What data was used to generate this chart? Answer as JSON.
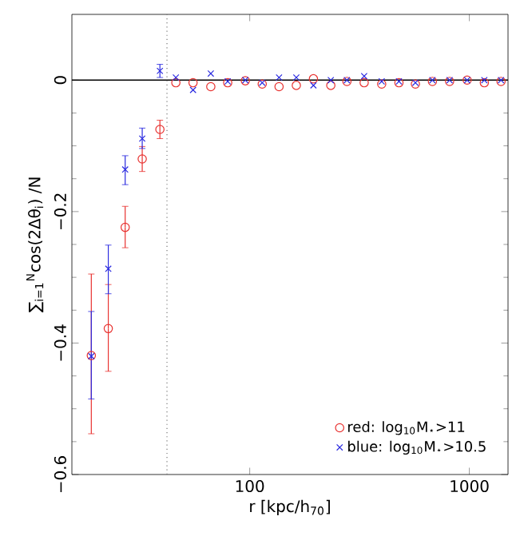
{
  "chart_data": {
    "type": "scatter",
    "xlabel": "r [kpc/h$_{70}$]",
    "ylabel": "∑$_{i=1}$$^{N}$cos(2Δθ$_{i}$) /N",
    "log": "x",
    "xlim": [
      15.5,
      1500
    ],
    "ylim": [
      -0.6,
      0.1
    ],
    "xticks": [
      100,
      1000
    ],
    "yticks": [
      {
        "value": -0.6,
        "label": "−0.6"
      },
      {
        "value": -0.4,
        "label": "−0.4"
      },
      {
        "value": -0.2,
        "label": "−0.2"
      },
      0
    ],
    "legend": "bottom right",
    "grid": false,
    "ref_lines": [
      {
        "axis": "y",
        "value": 0,
        "color": "#000000",
        "line_style": "solid"
      },
      {
        "axis": "x",
        "value": 42,
        "color": "#777777",
        "line_style": "dotted"
      }
    ],
    "series": [
      {
        "name": "red: log$_{10}$M$_{⋆}$>11",
        "color": "#e8312f",
        "marker": "circle",
        "x": [
          19.0,
          22.7,
          27.1,
          32.4,
          39.0,
          46.1,
          55.2,
          66.5,
          79.4,
          95.5,
          114,
          136,
          163,
          195,
          234,
          277,
          332,
          399,
          478,
          568,
          679,
          813,
          977,
          1170,
          1394
        ],
        "values": [
          -0.419,
          -0.378,
          -0.224,
          -0.12,
          -0.075,
          -0.004,
          -0.004,
          -0.01,
          -0.004,
          -0.001,
          -0.006,
          -0.01,
          -0.008,
          0.002,
          -0.008,
          -0.002,
          -0.004,
          -0.006,
          -0.004,
          -0.006,
          -0.002,
          -0.002,
          0,
          -0.004,
          -0.002
        ],
        "errors": [
          [
            -0.538,
            -0.295
          ],
          [
            -0.443,
            -0.311
          ],
          [
            -0.255,
            -0.192
          ],
          [
            -0.139,
            -0.101
          ],
          [
            -0.089,
            -0.061
          ],
          null,
          null,
          null,
          null,
          null,
          null,
          null,
          null,
          null,
          null,
          null,
          null,
          null,
          null,
          null,
          null,
          null,
          null,
          null,
          null
        ]
      },
      {
        "name": "blue: log$_{10}$M$_{⋆}$>10.5",
        "color": "#2a2ae0",
        "marker": "cross",
        "x": [
          19.0,
          22.7,
          27.1,
          32.4,
          39.0,
          46.1,
          55.2,
          66.5,
          79.4,
          95.5,
          114,
          136,
          163,
          195,
          234,
          277,
          332,
          399,
          478,
          568,
          679,
          813,
          977,
          1170,
          1394
        ],
        "values": [
          -0.42,
          -0.287,
          -0.136,
          -0.089,
          0.014,
          0.004,
          -0.015,
          0.01,
          -0.002,
          0,
          -0.004,
          0.004,
          0.004,
          -0.008,
          0,
          0,
          0.006,
          -0.002,
          -0.002,
          -0.004,
          0,
          0,
          0,
          0,
          0
        ],
        "errors": [
          [
            -0.485,
            -0.352
          ],
          [
            -0.325,
            -0.251
          ],
          [
            -0.159,
            -0.115
          ],
          [
            -0.104,
            -0.073
          ],
          [
            0.004,
            0.024
          ],
          null,
          null,
          null,
          null,
          null,
          null,
          null,
          null,
          null,
          null,
          null,
          null,
          null,
          null,
          null,
          null,
          null,
          null,
          null,
          null
        ]
      }
    ]
  }
}
